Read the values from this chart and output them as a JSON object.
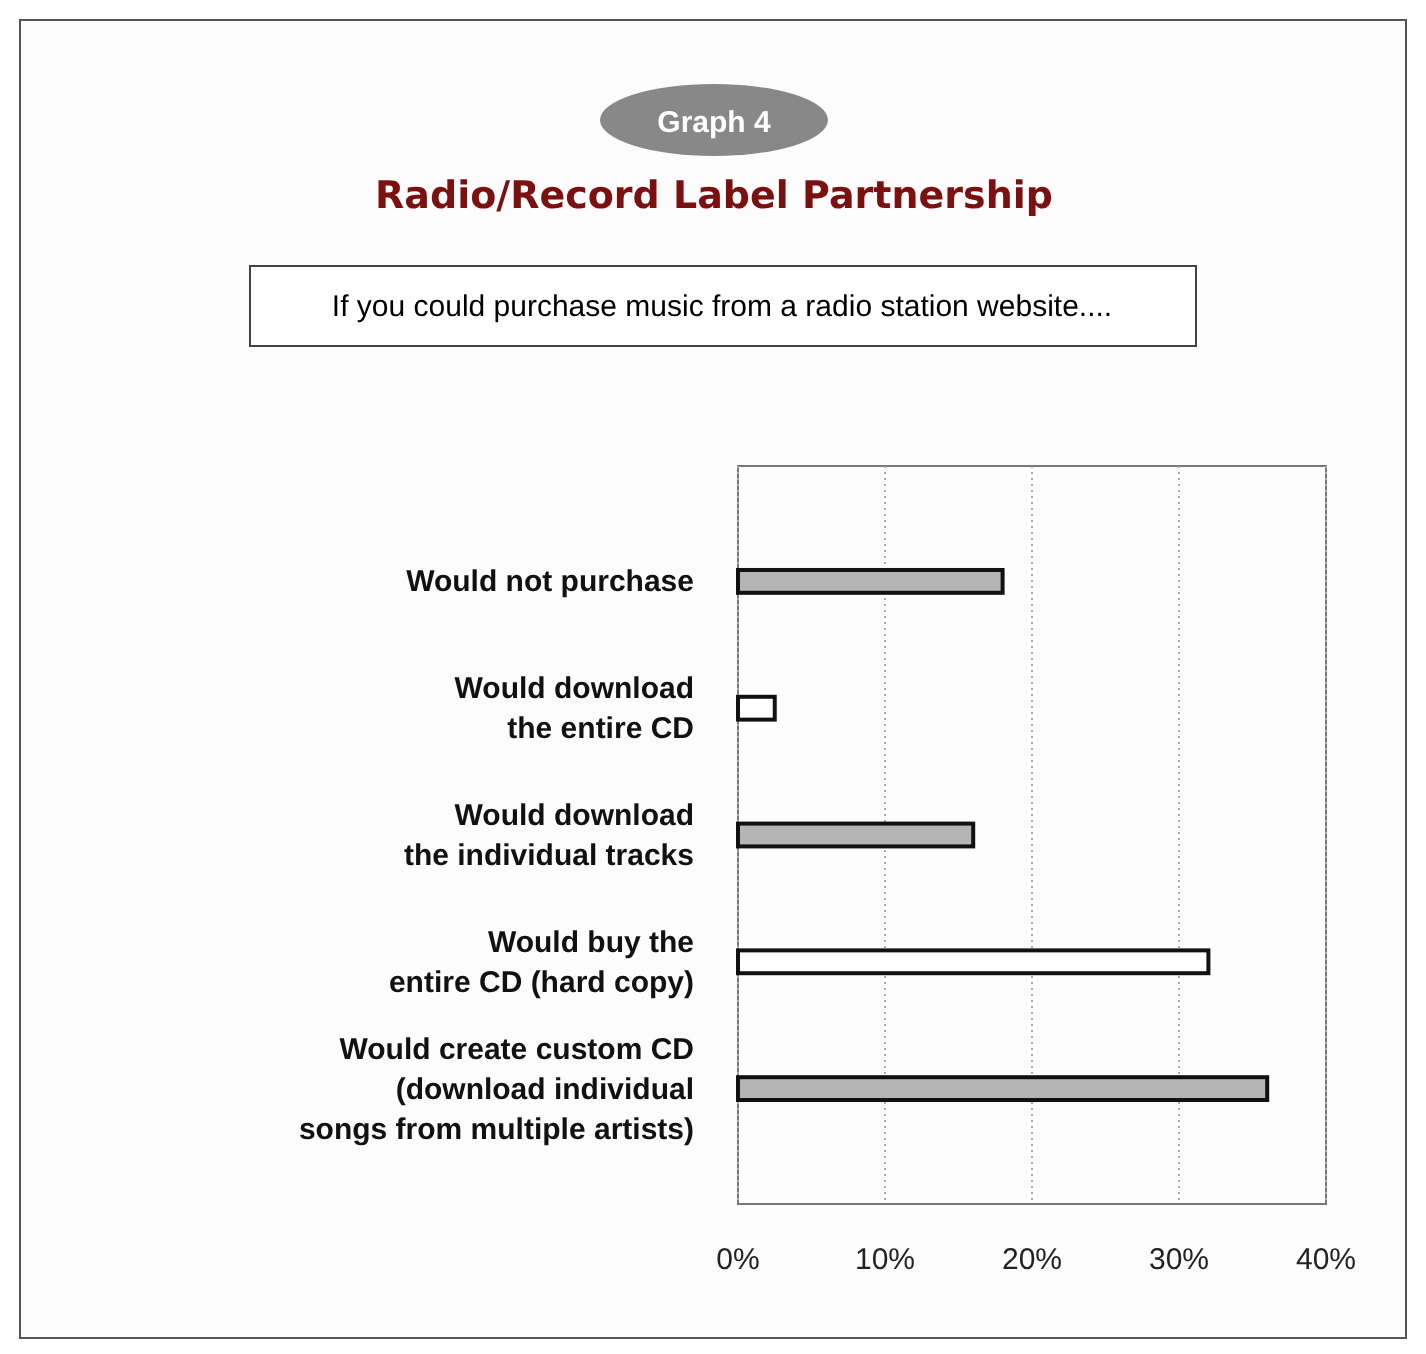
{
  "chart_data": {
    "type": "bar",
    "orientation": "horizontal",
    "title": "Radio/Record Label Partnership",
    "subtitle": "If you could purchase music from a radio station website....",
    "annotations": [
      "Graph 4"
    ],
    "categories": [
      "Would not purchase",
      "Would download\nthe entire CD",
      "Would download\nthe individual tracks",
      "Would buy the\nentire CD (hard copy)",
      "Would create custom CD\n(download individual\nsongs from multiple artists)"
    ],
    "values": [
      18,
      2.5,
      16,
      32,
      36
    ],
    "colors": [
      "#b4b4b4",
      "#ffffff",
      "#b4b4b4",
      "#ffffff",
      "#b4b4b4"
    ],
    "xlim": [
      0,
      40
    ],
    "xticks": [
      {
        "value": 0,
        "label": "0%"
      },
      {
        "value": 10,
        "label": "10%"
      },
      {
        "value": 20,
        "label": "20%"
      },
      {
        "value": 30,
        "label": "30%"
      },
      {
        "value": 40,
        "label": "40%"
      }
    ],
    "grid": "x"
  }
}
